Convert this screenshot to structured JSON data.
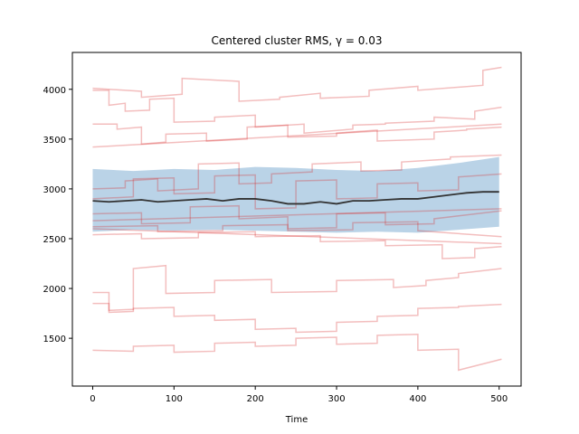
{
  "chart_data": {
    "type": "line",
    "title": "Centered cluster RMS, γ = 0.03",
    "xlabel": "Time",
    "ylabel": "",
    "xlim": [
      -25,
      527
    ],
    "ylim": [
      1020,
      4370
    ],
    "x_ticks": [
      0,
      100,
      200,
      300,
      400,
      500
    ],
    "y_ticks": [
      1500,
      2000,
      2500,
      3000,
      3500,
      4000
    ],
    "grid": false,
    "legend": "none",
    "colors": {
      "member": "#d62728",
      "band": "#aecbe3",
      "mean": "#333333"
    },
    "band": {
      "x": [
        0,
        50,
        100,
        150,
        200,
        250,
        300,
        350,
        400,
        450,
        500
      ],
      "upper": [
        3200,
        3180,
        3200,
        3190,
        3220,
        3210,
        3190,
        3180,
        3210,
        3260,
        3320
      ],
      "lower": [
        2570,
        2590,
        2580,
        2590,
        2580,
        2570,
        2560,
        2570,
        2560,
        2590,
        2620
      ]
    },
    "mean": {
      "x": [
        0,
        20,
        40,
        60,
        80,
        100,
        120,
        140,
        160,
        180,
        200,
        220,
        240,
        260,
        280,
        300,
        320,
        340,
        360,
        380,
        400,
        420,
        440,
        460,
        480,
        500
      ],
      "y": [
        2880,
        2870,
        2880,
        2890,
        2870,
        2880,
        2890,
        2900,
        2880,
        2900,
        2900,
        2880,
        2850,
        2850,
        2870,
        2850,
        2880,
        2880,
        2890,
        2900,
        2900,
        2920,
        2940,
        2960,
        2970,
        2970
      ]
    },
    "series": [
      {
        "x": [
          0,
          60,
          60,
          110,
          110,
          180,
          180,
          230,
          230,
          280,
          280,
          340,
          340,
          400,
          400,
          480,
          480,
          503
        ],
        "y": [
          4010,
          3980,
          3920,
          3950,
          4110,
          4080,
          3880,
          3900,
          3920,
          3960,
          3910,
          3930,
          3990,
          4030,
          3990,
          4040,
          4190,
          4220
        ]
      },
      {
        "x": [
          0,
          20,
          20,
          40,
          40,
          70,
          70,
          100,
          100,
          150,
          150,
          200,
          200,
          260,
          260,
          320,
          320,
          360,
          360,
          420,
          420,
          470,
          470,
          503
        ],
        "y": [
          3990,
          3990,
          3840,
          3860,
          3780,
          3790,
          3900,
          3910,
          3670,
          3680,
          3720,
          3740,
          3620,
          3650,
          3560,
          3600,
          3640,
          3650,
          3660,
          3680,
          3720,
          3700,
          3780,
          3820
        ]
      },
      {
        "x": [
          0,
          30,
          30,
          60,
          60,
          90,
          90,
          140,
          140,
          190,
          190,
          240,
          240,
          300,
          300,
          350,
          350,
          420,
          420,
          460,
          460,
          503
        ],
        "y": [
          3650,
          3650,
          3600,
          3620,
          3450,
          3470,
          3550,
          3560,
          3480,
          3500,
          3620,
          3640,
          3520,
          3530,
          3560,
          3590,
          3480,
          3500,
          3570,
          3590,
          3600,
          3620
        ]
      },
      {
        "x": [
          0,
          503
        ],
        "y": [
          3420,
          3650
        ]
      },
      {
        "x": [
          0,
          40,
          40,
          80,
          80,
          130,
          130,
          180,
          180,
          220,
          220,
          270,
          270,
          330,
          330,
          380,
          380,
          440,
          440,
          503
        ],
        "y": [
          3000,
          3010,
          3080,
          3100,
          2980,
          3000,
          3250,
          3260,
          3050,
          3060,
          3150,
          3170,
          3250,
          3270,
          3180,
          3190,
          3270,
          3300,
          3320,
          3340
        ]
      },
      {
        "x": [
          0,
          50,
          50,
          100,
          100,
          150,
          150,
          200,
          200,
          250,
          250,
          300,
          300,
          350,
          350,
          400,
          400,
          450,
          450,
          503
        ],
        "y": [
          2900,
          2920,
          3100,
          3110,
          2950,
          2960,
          3130,
          3140,
          2800,
          2810,
          3080,
          3090,
          2900,
          2910,
          3050,
          3060,
          2980,
          2990,
          3120,
          3150
        ]
      },
      {
        "x": [
          0,
          60,
          60,
          120,
          120,
          180,
          180,
          240,
          240,
          300,
          300,
          360,
          360,
          420,
          420,
          503
        ],
        "y": [
          2750,
          2760,
          2650,
          2660,
          2820,
          2830,
          2700,
          2720,
          2600,
          2610,
          2750,
          2760,
          2640,
          2650,
          2700,
          2780
        ]
      },
      {
        "x": [
          0,
          80,
          80,
          160,
          160,
          240,
          240,
          320,
          320,
          400,
          400,
          503
        ],
        "y": [
          2620,
          2630,
          2570,
          2580,
          2630,
          2640,
          2580,
          2590,
          2660,
          2670,
          2580,
          2520
        ]
      },
      {
        "x": [
          0,
          503
        ],
        "y": [
          2680,
          2800
        ]
      },
      {
        "x": [
          0,
          503
        ],
        "y": [
          2600,
          2450
        ]
      },
      {
        "x": [
          0,
          60,
          60,
          130,
          130,
          200,
          200,
          280,
          280,
          360,
          360,
          430,
          430,
          470,
          470,
          503
        ],
        "y": [
          2540,
          2550,
          2500,
          2510,
          2560,
          2570,
          2520,
          2530,
          2470,
          2480,
          2430,
          2440,
          2300,
          2310,
          2400,
          2420
        ]
      },
      {
        "x": [
          0,
          20,
          20,
          50,
          50,
          90,
          90,
          150,
          150,
          220,
          220,
          300,
          300,
          370,
          370,
          410,
          410,
          450,
          450,
          503
        ],
        "y": [
          1960,
          1960,
          1780,
          1790,
          2200,
          2230,
          1950,
          1960,
          2080,
          2090,
          1960,
          1970,
          2080,
          2090,
          2010,
          2030,
          2080,
          2110,
          2150,
          2200
        ]
      },
      {
        "x": [
          0,
          20,
          20,
          50,
          50,
          100,
          100,
          150,
          150,
          200,
          200,
          250,
          250,
          300,
          300,
          350,
          350,
          400,
          400,
          450,
          450,
          503
        ],
        "y": [
          1850,
          1850,
          1760,
          1770,
          1800,
          1810,
          1720,
          1730,
          1680,
          1690,
          1590,
          1600,
          1560,
          1570,
          1660,
          1670,
          1720,
          1730,
          1800,
          1810,
          1820,
          1840
        ]
      },
      {
        "x": [
          0,
          50,
          50,
          100,
          100,
          150,
          150,
          200,
          200,
          250,
          250,
          300,
          300,
          350,
          350,
          400,
          400,
          450,
          450,
          503
        ],
        "y": [
          1380,
          1370,
          1420,
          1430,
          1360,
          1370,
          1450,
          1460,
          1420,
          1430,
          1500,
          1510,
          1440,
          1450,
          1530,
          1540,
          1380,
          1390,
          1180,
          1290
        ]
      }
    ]
  }
}
